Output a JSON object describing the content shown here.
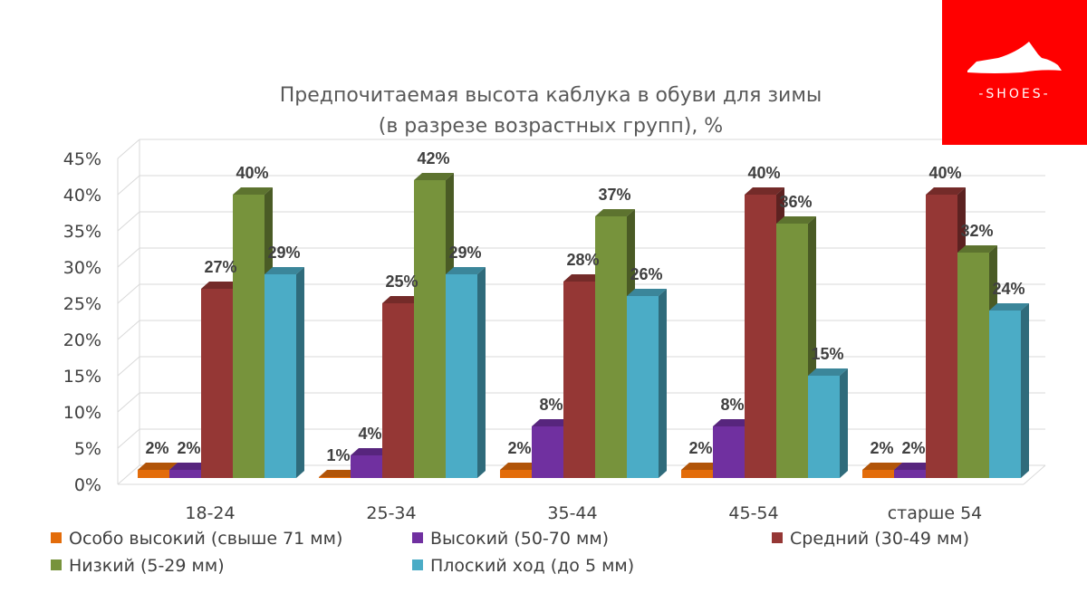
{
  "brand": {
    "logo_text": "-SHOES-",
    "logo_bg": "#ff0000",
    "logo_fg": "#ffffff"
  },
  "chart_data": {
    "type": "bar",
    "title": [
      "Предпочитаемая высота каблука  в обуви для зимы",
      "(в разрезе возрастных групп), %"
    ],
    "categories": [
      "18-24",
      "25-34",
      "35-44",
      "45-54",
      "старше 54"
    ],
    "y_ticks": [
      "0%",
      "5%",
      "10%",
      "15%",
      "20%",
      "25%",
      "30%",
      "35%",
      "40%",
      "45%"
    ],
    "ylim": [
      0,
      45
    ],
    "grid": true,
    "legend_position": "bottom",
    "series": [
      {
        "name": "Особо высокий (свыше 71 мм)",
        "color": "#e36c0a",
        "values": [
          2,
          1,
          2,
          2,
          2
        ],
        "labels": [
          "2%",
          "1%",
          "2%",
          "2%",
          "2%"
        ]
      },
      {
        "name": "Высокий (50-70 мм)",
        "color": "#7030a0",
        "values": [
          2,
          4,
          8,
          8,
          2
        ],
        "labels": [
          "2%",
          "4%",
          "8%",
          "8%",
          "2%"
        ]
      },
      {
        "name": "Средний (30-49 мм)",
        "color": "#953735",
        "values": [
          27,
          25,
          28,
          40,
          40
        ],
        "labels": [
          "27%",
          "25%",
          "28%",
          "40%",
          "40%"
        ]
      },
      {
        "name": "Низкий (5-29 мм)",
        "color": "#77933c",
        "values": [
          40,
          42,
          37,
          36,
          32
        ],
        "labels": [
          "40%",
          "42%",
          "37%",
          "36%",
          "32%"
        ]
      },
      {
        "name": "Плоский ход (до 5 мм)",
        "color": "#4bacc6",
        "values": [
          29,
          29,
          26,
          15,
          24
        ],
        "labels": [
          "29%",
          "29%",
          "26%",
          "15%",
          "24%"
        ]
      }
    ]
  }
}
